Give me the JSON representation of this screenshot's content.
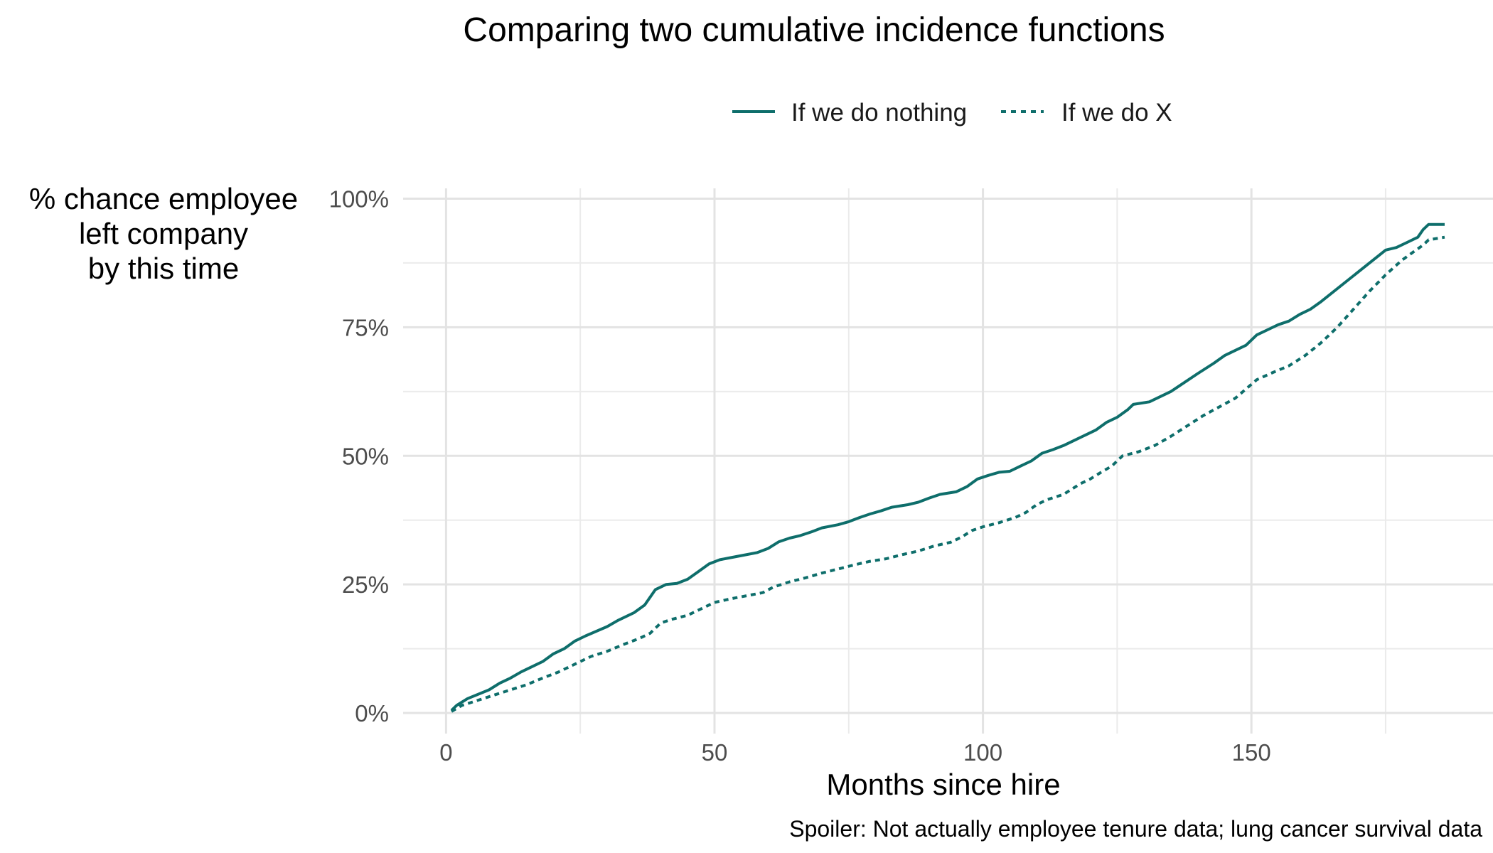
{
  "chart_data": {
    "type": "line",
    "title": "Comparing two cumulative incidence functions",
    "xlabel": "Months since hire",
    "ylabel_lines": [
      "% chance employee",
      "left company",
      "by this time"
    ],
    "caption": "Spoiler: Not actually employee tenure data; lung cancer survival data",
    "xlim": [
      -8,
      195
    ],
    "ylim": [
      -0.04,
      1.02
    ],
    "x_ticks": [
      0,
      50,
      100,
      150
    ],
    "x_tick_labels": [
      "0",
      "50",
      "100",
      "150"
    ],
    "y_ticks": [
      0,
      0.25,
      0.5,
      0.75,
      1.0
    ],
    "y_tick_labels": [
      "0%",
      "25%",
      "50%",
      "75%",
      "100%"
    ],
    "grid": true,
    "legend_position": "top",
    "line_color": "#0e6e6b",
    "series": [
      {
        "name": "If we do nothing",
        "style": "solid",
        "points": [
          [
            1,
            0.005
          ],
          [
            2,
            0.015
          ],
          [
            4,
            0.028
          ],
          [
            8,
            0.045
          ],
          [
            10,
            0.058
          ],
          [
            12,
            0.068
          ],
          [
            14,
            0.08
          ],
          [
            16,
            0.09
          ],
          [
            18,
            0.1
          ],
          [
            20,
            0.115
          ],
          [
            22,
            0.125
          ],
          [
            24,
            0.14
          ],
          [
            26,
            0.15
          ],
          [
            30,
            0.168
          ],
          [
            32,
            0.18
          ],
          [
            35,
            0.195
          ],
          [
            37,
            0.21
          ],
          [
            39,
            0.24
          ],
          [
            41,
            0.25
          ],
          [
            43,
            0.252
          ],
          [
            45,
            0.26
          ],
          [
            47,
            0.275
          ],
          [
            49,
            0.29
          ],
          [
            51,
            0.298
          ],
          [
            53,
            0.302
          ],
          [
            55,
            0.306
          ],
          [
            58,
            0.312
          ],
          [
            60,
            0.32
          ],
          [
            62,
            0.333
          ],
          [
            64,
            0.34
          ],
          [
            66,
            0.345
          ],
          [
            68,
            0.352
          ],
          [
            70,
            0.36
          ],
          [
            73,
            0.366
          ],
          [
            75,
            0.372
          ],
          [
            77,
            0.38
          ],
          [
            79,
            0.387
          ],
          [
            81,
            0.393
          ],
          [
            83,
            0.4
          ],
          [
            86,
            0.405
          ],
          [
            88,
            0.41
          ],
          [
            90,
            0.418
          ],
          [
            92,
            0.425
          ],
          [
            95,
            0.43
          ],
          [
            97,
            0.44
          ],
          [
            99,
            0.455
          ],
          [
            101,
            0.462
          ],
          [
            103,
            0.468
          ],
          [
            105,
            0.47
          ],
          [
            107,
            0.48
          ],
          [
            109,
            0.49
          ],
          [
            111,
            0.505
          ],
          [
            113,
            0.512
          ],
          [
            115,
            0.52
          ],
          [
            117,
            0.53
          ],
          [
            119,
            0.54
          ],
          [
            121,
            0.55
          ],
          [
            123,
            0.565
          ],
          [
            125,
            0.575
          ],
          [
            127,
            0.59
          ],
          [
            128,
            0.6
          ],
          [
            131,
            0.605
          ],
          [
            133,
            0.615
          ],
          [
            135,
            0.625
          ],
          [
            140,
            0.66
          ],
          [
            143,
            0.68
          ],
          [
            145,
            0.695
          ],
          [
            147,
            0.705
          ],
          [
            149,
            0.715
          ],
          [
            151,
            0.735
          ],
          [
            153,
            0.745
          ],
          [
            155,
            0.755
          ],
          [
            157,
            0.762
          ],
          [
            159,
            0.775
          ],
          [
            161,
            0.785
          ],
          [
            163,
            0.8
          ],
          [
            175,
            0.9
          ],
          [
            177,
            0.905
          ],
          [
            179,
            0.915
          ],
          [
            181,
            0.925
          ],
          [
            182,
            0.94
          ],
          [
            183,
            0.95
          ],
          [
            186,
            0.95
          ]
        ]
      },
      {
        "name": "If we do X",
        "style": "dashed",
        "points": [
          [
            1,
            0.003
          ],
          [
            3,
            0.015
          ],
          [
            6,
            0.025
          ],
          [
            9,
            0.035
          ],
          [
            12,
            0.045
          ],
          [
            15,
            0.055
          ],
          [
            18,
            0.068
          ],
          [
            21,
            0.08
          ],
          [
            24,
            0.095
          ],
          [
            27,
            0.11
          ],
          [
            30,
            0.12
          ],
          [
            33,
            0.133
          ],
          [
            36,
            0.145
          ],
          [
            38,
            0.155
          ],
          [
            40,
            0.175
          ],
          [
            42,
            0.182
          ],
          [
            45,
            0.19
          ],
          [
            48,
            0.205
          ],
          [
            50,
            0.215
          ],
          [
            53,
            0.222
          ],
          [
            56,
            0.228
          ],
          [
            59,
            0.234
          ],
          [
            61,
            0.245
          ],
          [
            64,
            0.255
          ],
          [
            67,
            0.263
          ],
          [
            70,
            0.272
          ],
          [
            73,
            0.28
          ],
          [
            76,
            0.288
          ],
          [
            79,
            0.295
          ],
          [
            82,
            0.3
          ],
          [
            85,
            0.308
          ],
          [
            88,
            0.315
          ],
          [
            91,
            0.325
          ],
          [
            94,
            0.332
          ],
          [
            96,
            0.342
          ],
          [
            98,
            0.355
          ],
          [
            100,
            0.362
          ],
          [
            103,
            0.37
          ],
          [
            106,
            0.38
          ],
          [
            108,
            0.39
          ],
          [
            110,
            0.405
          ],
          [
            112,
            0.415
          ],
          [
            115,
            0.425
          ],
          [
            118,
            0.445
          ],
          [
            120,
            0.455
          ],
          [
            122,
            0.468
          ],
          [
            124,
            0.48
          ],
          [
            126,
            0.5
          ],
          [
            129,
            0.508
          ],
          [
            132,
            0.52
          ],
          [
            135,
            0.538
          ],
          [
            138,
            0.558
          ],
          [
            141,
            0.578
          ],
          [
            144,
            0.595
          ],
          [
            147,
            0.612
          ],
          [
            149,
            0.63
          ],
          [
            151,
            0.648
          ],
          [
            154,
            0.662
          ],
          [
            157,
            0.675
          ],
          [
            160,
            0.695
          ],
          [
            163,
            0.72
          ],
          [
            166,
            0.75
          ],
          [
            169,
            0.785
          ],
          [
            172,
            0.82
          ],
          [
            175,
            0.852
          ],
          [
            178,
            0.88
          ],
          [
            180,
            0.895
          ],
          [
            182,
            0.91
          ],
          [
            183,
            0.92
          ],
          [
            186,
            0.925
          ]
        ]
      }
    ]
  }
}
